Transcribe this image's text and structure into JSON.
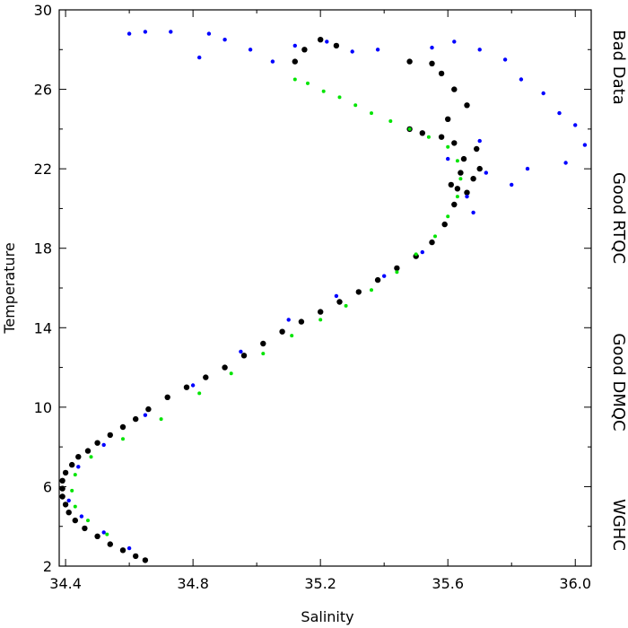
{
  "chart_data": {
    "type": "scatter",
    "title": "",
    "xlabel": "Salinity",
    "ylabel": "Temperature",
    "xlim": [
      34.38,
      36.05
    ],
    "ylim": [
      2,
      30
    ],
    "x_ticks": [
      34.4,
      34.8,
      35.2,
      35.6,
      36.0
    ],
    "x_tick_labels": [
      "34.4",
      "34.8",
      "35.2",
      "35.6",
      "36.0"
    ],
    "y_ticks": [
      2,
      6,
      10,
      14,
      18,
      22,
      26,
      30
    ],
    "y_tick_labels": [
      "2",
      "6",
      "10",
      "14",
      "18",
      "22",
      "26",
      "30"
    ],
    "grid": false,
    "legend": {
      "placement": "right, rotated vertical",
      "entries": [
        "Bad Data",
        "Good RTQC",
        "Good DMQC",
        "WGHC"
      ]
    },
    "colors": {
      "bad_data": "#ff5a5a",
      "good_rtqc": "#0000ff",
      "good_dmqc": "#000000",
      "wghc": "#00e400"
    },
    "series": [
      {
        "name": "Good DMQC",
        "color": "#000000",
        "points": [
          [
            34.65,
            2.3
          ],
          [
            34.62,
            2.5
          ],
          [
            34.58,
            2.8
          ],
          [
            34.54,
            3.1
          ],
          [
            34.5,
            3.5
          ],
          [
            34.46,
            3.9
          ],
          [
            34.43,
            4.3
          ],
          [
            34.41,
            4.7
          ],
          [
            34.4,
            5.1
          ],
          [
            34.39,
            5.5
          ],
          [
            34.39,
            5.9
          ],
          [
            34.39,
            6.3
          ],
          [
            34.4,
            6.7
          ],
          [
            34.42,
            7.1
          ],
          [
            34.44,
            7.5
          ],
          [
            34.47,
            7.8
          ],
          [
            34.5,
            8.2
          ],
          [
            34.54,
            8.6
          ],
          [
            34.58,
            9.0
          ],
          [
            34.62,
            9.4
          ],
          [
            34.66,
            9.9
          ],
          [
            34.72,
            10.5
          ],
          [
            34.78,
            11.0
          ],
          [
            34.84,
            11.5
          ],
          [
            34.9,
            12.0
          ],
          [
            34.96,
            12.6
          ],
          [
            35.02,
            13.2
          ],
          [
            35.08,
            13.8
          ],
          [
            35.14,
            14.3
          ],
          [
            35.2,
            14.8
          ],
          [
            35.26,
            15.3
          ],
          [
            35.32,
            15.8
          ],
          [
            35.38,
            16.4
          ],
          [
            35.44,
            17.0
          ],
          [
            35.5,
            17.6
          ],
          [
            35.55,
            18.3
          ],
          [
            35.59,
            19.2
          ],
          [
            35.62,
            20.2
          ],
          [
            35.63,
            21.0
          ],
          [
            35.64,
            21.8
          ],
          [
            35.65,
            22.5
          ],
          [
            35.62,
            23.3
          ],
          [
            35.58,
            23.6
          ],
          [
            35.52,
            23.8
          ],
          [
            35.48,
            24.0
          ],
          [
            35.6,
            24.5
          ],
          [
            35.66,
            25.2
          ],
          [
            35.62,
            26.0
          ],
          [
            35.58,
            26.8
          ],
          [
            35.55,
            27.3
          ],
          [
            35.48,
            27.4
          ],
          [
            35.25,
            28.2
          ],
          [
            35.2,
            28.5
          ],
          [
            35.15,
            28.0
          ],
          [
            35.12,
            27.4
          ],
          [
            35.68,
            21.5
          ],
          [
            35.7,
            22.0
          ],
          [
            35.61,
            21.2
          ],
          [
            35.66,
            20.8
          ],
          [
            35.69,
            23.0
          ]
        ]
      },
      {
        "name": "Good RTQC",
        "color": "#0000ff",
        "points": [
          [
            34.6,
            28.8
          ],
          [
            34.65,
            28.9
          ],
          [
            34.73,
            28.9
          ],
          [
            34.85,
            28.8
          ],
          [
            34.9,
            28.5
          ],
          [
            34.98,
            28.0
          ],
          [
            34.82,
            27.6
          ],
          [
            35.05,
            27.4
          ],
          [
            35.12,
            28.2
          ],
          [
            35.22,
            28.4
          ],
          [
            35.3,
            27.9
          ],
          [
            35.38,
            28.0
          ],
          [
            35.55,
            28.1
          ],
          [
            35.62,
            28.4
          ],
          [
            35.7,
            28.0
          ],
          [
            35.78,
            27.5
          ],
          [
            35.83,
            26.5
          ],
          [
            35.9,
            25.8
          ],
          [
            35.95,
            24.8
          ],
          [
            36.0,
            24.2
          ],
          [
            36.03,
            23.2
          ],
          [
            35.97,
            22.3
          ],
          [
            35.85,
            22.0
          ],
          [
            35.8,
            21.2
          ],
          [
            35.72,
            21.8
          ],
          [
            35.7,
            23.4
          ],
          [
            35.66,
            20.6
          ],
          [
            35.68,
            19.8
          ],
          [
            35.6,
            22.5
          ],
          [
            35.52,
            17.8
          ],
          [
            35.4,
            16.6
          ],
          [
            35.25,
            15.6
          ],
          [
            35.1,
            14.4
          ],
          [
            34.95,
            12.8
          ],
          [
            34.8,
            11.1
          ],
          [
            34.65,
            9.6
          ],
          [
            34.52,
            8.1
          ],
          [
            34.44,
            7.0
          ],
          [
            34.41,
            5.3
          ],
          [
            34.45,
            4.5
          ],
          [
            34.52,
            3.7
          ],
          [
            34.6,
            2.9
          ]
        ]
      },
      {
        "name": "WGHC",
        "color": "#00e400",
        "points": [
          [
            35.12,
            26.5
          ],
          [
            35.16,
            26.3
          ],
          [
            35.21,
            25.9
          ],
          [
            35.26,
            25.6
          ],
          [
            35.31,
            25.2
          ],
          [
            35.36,
            24.8
          ],
          [
            35.42,
            24.4
          ],
          [
            35.48,
            24.0
          ],
          [
            35.54,
            23.6
          ],
          [
            35.6,
            23.1
          ],
          [
            35.63,
            22.4
          ],
          [
            35.64,
            21.5
          ],
          [
            35.63,
            20.6
          ],
          [
            35.6,
            19.6
          ],
          [
            35.56,
            18.6
          ],
          [
            35.5,
            17.7
          ],
          [
            35.44,
            16.8
          ],
          [
            35.36,
            15.9
          ],
          [
            35.28,
            15.1
          ],
          [
            35.2,
            14.4
          ],
          [
            35.11,
            13.6
          ],
          [
            35.02,
            12.7
          ],
          [
            34.92,
            11.7
          ],
          [
            34.82,
            10.7
          ],
          [
            34.7,
            9.4
          ],
          [
            34.58,
            8.4
          ],
          [
            34.48,
            7.5
          ],
          [
            34.43,
            6.6
          ],
          [
            34.42,
            5.8
          ],
          [
            34.43,
            5.0
          ],
          [
            34.47,
            4.3
          ],
          [
            34.53,
            3.6
          ]
        ]
      }
    ]
  }
}
